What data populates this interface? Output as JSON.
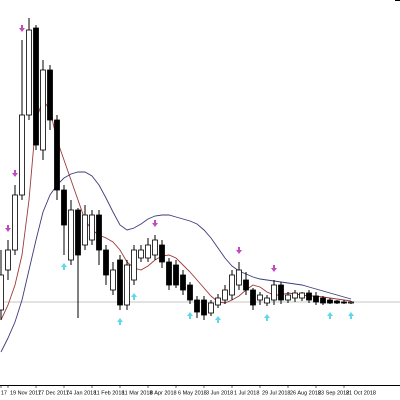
{
  "chart_data": {
    "type": "candlestick",
    "categories": [
      "17",
      "19 Nov 2017",
      null,
      null,
      null,
      "17 Dec 2017",
      null,
      null,
      null,
      "14 Jan 2018",
      null,
      null,
      null,
      "11 Feb 2018",
      null,
      null,
      null,
      "11 Mar 2018",
      null,
      null,
      null,
      "8 Apr 2018",
      null,
      null,
      null,
      "6 May 2018",
      null,
      null,
      null,
      "3 Jun 2018",
      null,
      null,
      null,
      "1 Jul 2018",
      null,
      null,
      null,
      "29 Jul 2018",
      null,
      null,
      null,
      "26 Aug 2018",
      null,
      null,
      null,
      "23 Sep 2018",
      null,
      null,
      null,
      "21 Oct 2018",
      null
    ],
    "open": [
      90,
      130,
      150,
      205,
      285,
      372,
      250,
      330,
      280,
      210,
      140,
      190,
      155,
      160,
      185,
      150,
      110,
      140,
      95,
      120,
      142,
      142,
      145,
      155,
      138,
      135,
      125,
      115,
      100,
      100,
      87,
      95,
      100,
      105,
      115,
      120,
      110,
      100,
      97,
      100,
      115,
      100,
      102,
      102,
      107,
      104,
      102,
      100,
      99,
      98,
      97
    ],
    "high": [
      150,
      160,
      215,
      360,
      382,
      375,
      340,
      335,
      285,
      215,
      200,
      192,
      195,
      190,
      190,
      155,
      138,
      145,
      140,
      155,
      155,
      162,
      165,
      160,
      142,
      140,
      130,
      118,
      104,
      104,
      100,
      106,
      115,
      130,
      138,
      128,
      112,
      108,
      105,
      120,
      118,
      108,
      110,
      108,
      110,
      108,
      104,
      102,
      100,
      100,
      99
    ],
    "low": [
      80,
      120,
      145,
      200,
      280,
      250,
      240,
      270,
      200,
      145,
      135,
      82,
      150,
      155,
      135,
      115,
      105,
      90,
      90,
      115,
      138,
      138,
      140,
      132,
      110,
      112,
      105,
      96,
      82,
      80,
      84,
      92,
      96,
      100,
      110,
      105,
      90,
      95,
      94,
      95,
      96,
      97,
      98,
      99,
      97,
      95,
      95,
      96,
      96,
      96,
      96
    ],
    "close": [
      125,
      150,
      205,
      285,
      370,
      255,
      330,
      280,
      210,
      175,
      190,
      145,
      185,
      185,
      150,
      125,
      130,
      95,
      135,
      150,
      150,
      155,
      160,
      138,
      115,
      115,
      110,
      100,
      88,
      85,
      97,
      102,
      110,
      125,
      130,
      110,
      95,
      105,
      102,
      115,
      100,
      105,
      107,
      107,
      100,
      98,
      97,
      97,
      97,
      97,
      98
    ],
    "lines": [
      {
        "color": "#9b3a3a",
        "values": [
          80,
          95,
          115,
          145,
          200,
          280,
          300,
          290,
          260,
          240,
          220,
          200,
          180,
          170,
          165,
          162,
          158,
          150,
          138,
          132,
          130,
          134,
          140,
          144,
          145,
          142,
          135,
          128,
          120,
          112,
          104,
          98,
          97,
          100,
          104,
          110,
          115,
          113,
          108,
          105,
          105,
          107,
          106,
          105,
          104,
          104,
          103,
          102,
          101,
          100,
          99
        ]
      },
      {
        "color": "#3c3c7a",
        "values": [
          48,
          62,
          78,
          100,
          130,
          160,
          188,
          205,
          215,
          222,
          226,
          228,
          228,
          224,
          215,
          202,
          188,
          175,
          170,
          172,
          176,
          181,
          184,
          185,
          185,
          183,
          181,
          179,
          176,
          170,
          162,
          152,
          142,
          134,
          129,
          126,
          123,
          121,
          120,
          119,
          118,
          117,
          116,
          115,
          113,
          111,
          109,
          107,
          105,
          103,
          101
        ]
      }
    ],
    "down_arrows": [
      1,
      2,
      3,
      22,
      34,
      39
    ],
    "down_arrow_color": "#c24bc2",
    "up_arrows": [
      9,
      17,
      19,
      27,
      31,
      38,
      47,
      50
    ],
    "up_arrow_color": "#5fd8ea",
    "price_line": 98,
    "ylim": [
      0,
      400
    ]
  }
}
